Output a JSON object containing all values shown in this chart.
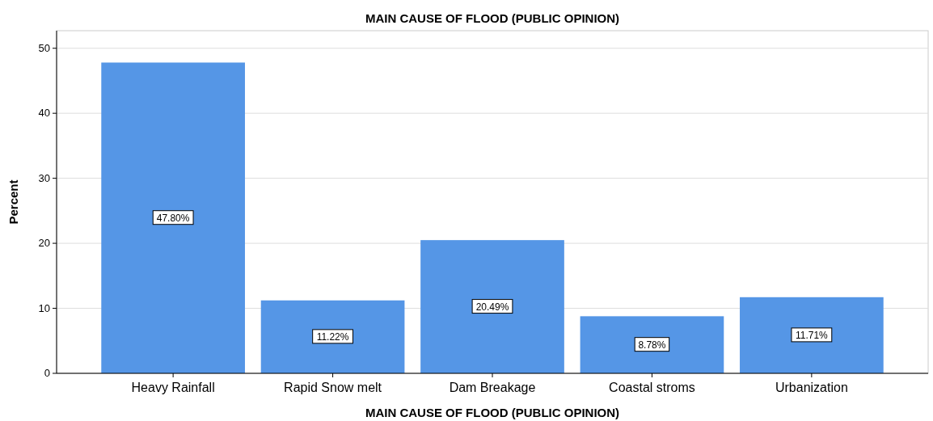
{
  "chart_data": {
    "type": "bar",
    "title": "MAIN CAUSE OF FLOOD (PUBLIC OPINION)",
    "xlabel": "MAIN CAUSE OF FLOOD (PUBLIC OPINION)",
    "ylabel": "Percent",
    "categories": [
      "Heavy Rainfall",
      "Rapid Snow melt",
      "Dam Breakage",
      "Coastal stroms",
      "Urbanization"
    ],
    "values": [
      47.8,
      11.22,
      20.49,
      8.78,
      11.71
    ],
    "value_labels": [
      "47.80%",
      "11.22%",
      "20.49%",
      "8.78%",
      "11.71%"
    ],
    "color": "#5596e6",
    "ylim": [
      0,
      52.7
    ],
    "yticks": [
      0,
      10,
      20,
      30,
      40,
      50
    ],
    "grid": "y"
  }
}
